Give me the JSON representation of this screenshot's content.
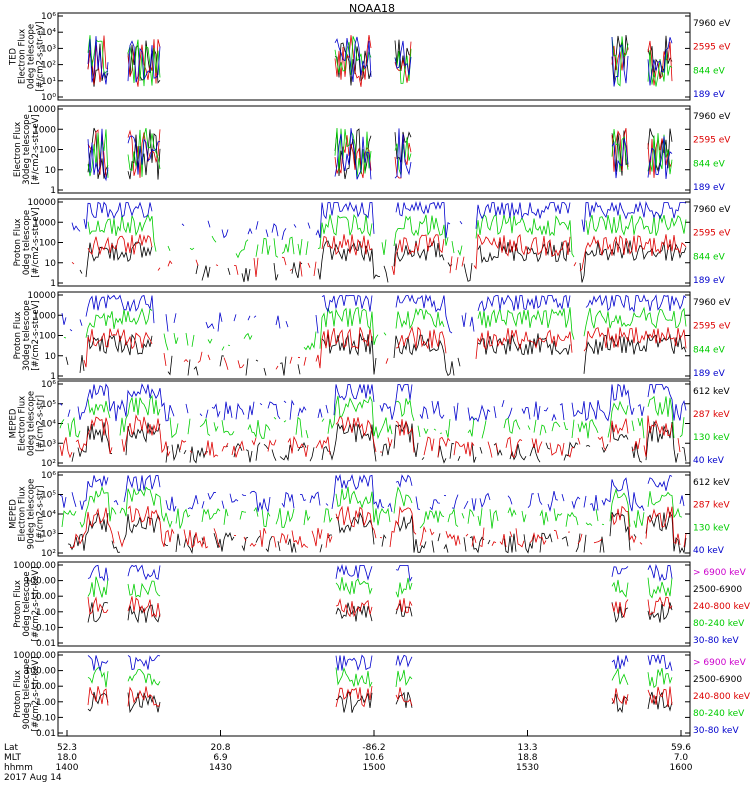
{
  "chart_data": {
    "title": "NOAA18",
    "time_axis": {
      "row_labels": [
        "Lat",
        "MLT",
        "hhmm"
      ],
      "date": "2017 Aug 14",
      "ticks": [
        {
          "lat": "52.3",
          "mlt": "18.0",
          "hhmm": "1400"
        },
        {
          "lat": "20.8",
          "mlt": "6.9",
          "hhmm": "1430"
        },
        {
          "lat": "-86.2",
          "mlt": "10.6",
          "hhmm": "1500"
        },
        {
          "lat": "13.3",
          "mlt": "18.8",
          "hhmm": "1530"
        },
        {
          "lat": "59.6",
          "mlt": "7.0",
          "hhmm": "1600"
        }
      ]
    },
    "panels": [
      {
        "type": "line",
        "log_y": true,
        "ylabel": [
          "TED",
          "Electron Flux",
          "0deg telescope",
          "[#/cm2-s-str-eV]"
        ],
        "yticks": [
          "10⁶",
          "10⁴",
          "10³",
          "10²",
          "10¹",
          "10⁰"
        ],
        "legend": [
          {
            "label": "7960 eV",
            "color": "#000000"
          },
          {
            "label": "2595 eV",
            "color": "#dd0000"
          },
          {
            "label": "844 eV",
            "color": "#00cc00"
          },
          {
            "label": "189 eV",
            "color": "#0000cc"
          }
        ]
      },
      {
        "type": "line",
        "log_y": true,
        "ylabel": [
          "Electron Flux",
          "30deg telescope",
          "[#/cm2-s-str-eV]"
        ],
        "yticks": [
          "10000",
          "1000",
          "100",
          "10",
          "1"
        ],
        "legend": [
          {
            "label": "7960 eV",
            "color": "#000000"
          },
          {
            "label": "2595 eV",
            "color": "#dd0000"
          },
          {
            "label": "844 eV",
            "color": "#00cc00"
          },
          {
            "label": "189 eV",
            "color": "#0000cc"
          }
        ]
      },
      {
        "type": "line",
        "log_y": true,
        "ylabel": [
          "Proton Flux",
          "0deg telescope",
          "[#/cm2-s-str-eV]"
        ],
        "yticks": [
          "10000",
          "1000",
          "100",
          "10",
          "1"
        ],
        "legend": [
          {
            "label": "7960 eV",
            "color": "#000000"
          },
          {
            "label": "2595 eV",
            "color": "#dd0000"
          },
          {
            "label": "844 eV",
            "color": "#00cc00"
          },
          {
            "label": "189 eV",
            "color": "#0000cc"
          }
        ]
      },
      {
        "type": "line",
        "log_y": true,
        "ylabel": [
          "Proton Flux",
          "30deg telescope",
          "[#/cm2-s-str-eV]"
        ],
        "yticks": [
          "10000",
          "1000",
          "100",
          "10",
          "1"
        ],
        "legend": [
          {
            "label": "7960 eV",
            "color": "#000000"
          },
          {
            "label": "2595 eV",
            "color": "#dd0000"
          },
          {
            "label": "844 eV",
            "color": "#00cc00"
          },
          {
            "label": "189 eV",
            "color": "#0000cc"
          }
        ]
      },
      {
        "type": "line",
        "log_y": true,
        "ylabel": [
          "MEPED",
          "Electron Flux",
          "0deg telescope",
          "[#/cm2-s-str]"
        ],
        "yticks": [
          "10⁶",
          "10⁵",
          "10⁴",
          "10³",
          "10²"
        ],
        "legend": [
          {
            "label": "612 keV",
            "color": "#000000"
          },
          {
            "label": "287 keV",
            "color": "#dd0000"
          },
          {
            "label": "130 keV",
            "color": "#00cc00"
          },
          {
            "label": "40 keV",
            "color": "#0000cc"
          }
        ]
      },
      {
        "type": "line",
        "log_y": true,
        "ylabel": [
          "MEPED",
          "Electron Flux",
          "90deg telescope",
          "[#/cm2-s-str]"
        ],
        "yticks": [
          "10⁶",
          "10⁵",
          "10⁴",
          "10³",
          "10²"
        ],
        "legend": [
          {
            "label": "612 keV",
            "color": "#000000"
          },
          {
            "label": "287 keV",
            "color": "#dd0000"
          },
          {
            "label": "130 keV",
            "color": "#00cc00"
          },
          {
            "label": "40 keV",
            "color": "#0000cc"
          }
        ]
      },
      {
        "type": "line",
        "log_y": true,
        "ylabel": [
          "Proton Flux",
          "0deg telescope",
          "[#/cm2-s-str-keV]"
        ],
        "yticks": [
          "10000.00",
          "100.00",
          "10.00",
          "1.00",
          "0.10",
          "0.01"
        ],
        "legend": [
          {
            "label": "> 6900 keV",
            "color": "#cc00cc"
          },
          {
            "label": "2500-6900",
            "color": "#000000"
          },
          {
            "label": "240-800 keV",
            "color": "#dd0000"
          },
          {
            "label": "80-240 keV",
            "color": "#00cc00"
          },
          {
            "label": "30-80 keV",
            "color": "#0000cc"
          }
        ]
      },
      {
        "type": "line",
        "log_y": true,
        "ylabel": [
          "Proton Flux",
          "90deg telescope",
          "[#/cm2-s-str-keV]"
        ],
        "yticks": [
          "10000.00",
          "100.00",
          "10.00",
          "1.00",
          "0.10",
          "0.01"
        ],
        "legend": [
          {
            "label": "> 6900 keV",
            "color": "#cc00cc"
          },
          {
            "label": "2500-6900",
            "color": "#000000"
          },
          {
            "label": "240-800 keV",
            "color": "#dd0000"
          },
          {
            "label": "80-240 keV",
            "color": "#00cc00"
          },
          {
            "label": "30-80 keV",
            "color": "#0000cc"
          }
        ]
      }
    ]
  }
}
